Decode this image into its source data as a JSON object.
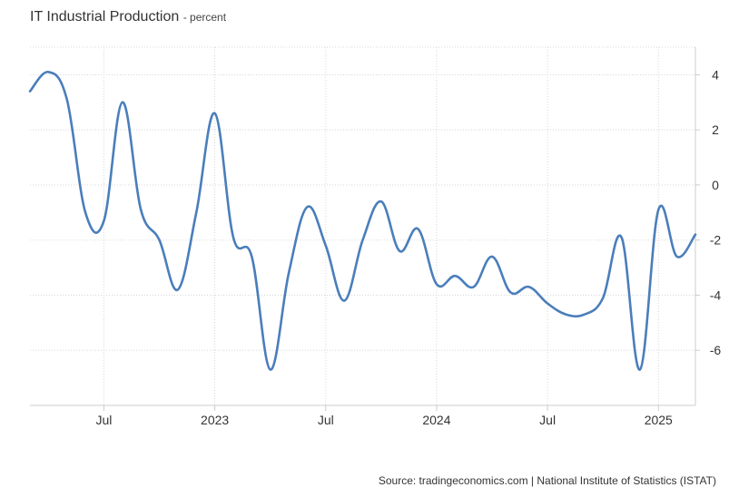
{
  "chart_data": {
    "type": "line",
    "title": "IT Industrial Production",
    "unit": "- percent",
    "source": "Source: tradingeconomics.com | National Institute of Statistics (ISTAT)",
    "x": [
      "2022-03",
      "2022-04",
      "2022-05",
      "2022-06",
      "2022-07",
      "2022-08",
      "2022-09",
      "2022-10",
      "2022-11",
      "2022-12",
      "2023-01",
      "2023-02",
      "2023-03",
      "2023-04",
      "2023-05",
      "2023-06",
      "2023-07",
      "2023-08",
      "2023-09",
      "2023-10",
      "2023-11",
      "2023-12",
      "2024-01",
      "2024-02",
      "2024-03",
      "2024-04",
      "2024-05",
      "2024-06",
      "2024-07",
      "2024-08",
      "2024-09",
      "2024-10",
      "2024-11",
      "2024-12",
      "2025-01",
      "2025-02",
      "2025-03"
    ],
    "series": [
      {
        "values": [
          3.4,
          4.1,
          3.1,
          -1.0,
          -1.3,
          3.0,
          -0.9,
          -2.0,
          -3.8,
          -1.0,
          2.6,
          -1.9,
          -2.6,
          -6.7,
          -3.2,
          -0.8,
          -2.2,
          -4.2,
          -2.0,
          -0.6,
          -2.4,
          -1.6,
          -3.6,
          -3.3,
          -3.7,
          -2.6,
          -3.9,
          -3.7,
          -4.3,
          -4.7,
          -4.7,
          -4.1,
          -1.9,
          -6.7,
          -0.9,
          -2.6,
          -1.8
        ],
        "color": "#4a7ebb"
      }
    ],
    "x_ticks": [
      {
        "date": "2022-07",
        "label": "Jul"
      },
      {
        "date": "2023-01",
        "label": "2023"
      },
      {
        "date": "2023-07",
        "label": "Jul"
      },
      {
        "date": "2024-01",
        "label": "2024"
      },
      {
        "date": "2024-07",
        "label": "Jul"
      },
      {
        "date": "2025-01",
        "label": "2025"
      }
    ],
    "y_ticks": [
      4,
      2,
      0,
      -2,
      -4,
      -6
    ],
    "ylim": [
      -8,
      5
    ],
    "xlim": [
      "2022-03",
      "2025-03"
    ],
    "grid": true,
    "y_axis_side": "right",
    "legend": "none"
  }
}
